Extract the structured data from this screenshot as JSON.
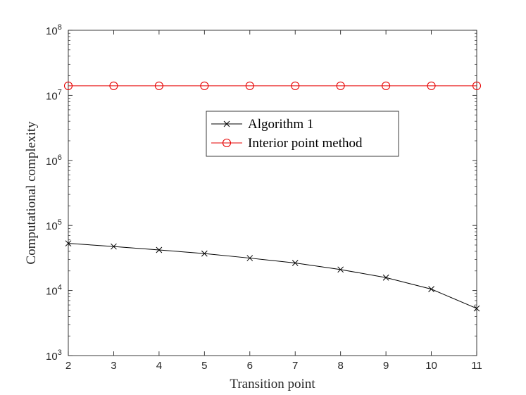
{
  "chart_data": {
    "type": "line",
    "xlabel": "Transition point",
    "ylabel": "Computational complexity",
    "xlim": [
      2,
      11
    ],
    "ylim": [
      1000,
      100000000
    ],
    "yscale": "log",
    "x_ticks": [
      2,
      3,
      4,
      5,
      6,
      7,
      8,
      9,
      10,
      11
    ],
    "y_ticks": [
      {
        "value": 1000,
        "base": "10",
        "exp": "3"
      },
      {
        "value": 10000,
        "base": "10",
        "exp": "4"
      },
      {
        "value": 100000,
        "base": "10",
        "exp": "5"
      },
      {
        "value": 1000000,
        "base": "10",
        "exp": "6"
      },
      {
        "value": 10000000,
        "base": "10",
        "exp": "7"
      },
      {
        "value": 100000000,
        "base": "10",
        "exp": "8"
      }
    ],
    "grid": false,
    "legend_position": "center",
    "x": [
      2,
      3,
      4,
      5,
      6,
      7,
      8,
      9,
      10,
      11
    ],
    "series": [
      {
        "name": "Algorithm 1",
        "color": "#000000",
        "marker": "x",
        "values": [
          53000,
          47500,
          42000,
          37000,
          31500,
          26500,
          21000,
          15800,
          10500,
          5300
        ]
      },
      {
        "name": "Interior point method",
        "color": "#e60000",
        "marker": "o",
        "values": [
          14000000,
          14000000,
          14000000,
          14000000,
          14000000,
          14000000,
          14000000,
          14000000,
          14000000,
          14000000
        ]
      }
    ]
  }
}
